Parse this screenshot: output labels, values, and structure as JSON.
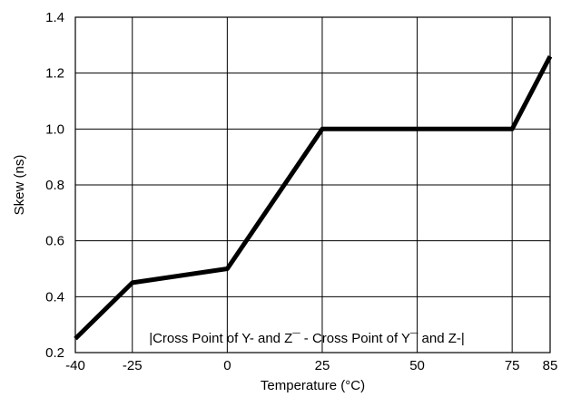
{
  "chart_data": {
    "type": "line",
    "title": "",
    "xlabel": "Temperature (°C)",
    "ylabel": "Skew (ns)",
    "x_ticks": [
      -40,
      -25,
      0,
      25,
      50,
      75,
      85
    ],
    "x_tick_labels": [
      "-40",
      "-25",
      "0",
      "25",
      "50",
      "75",
      "85"
    ],
    "y_ticks": [
      0.2,
      0.4,
      0.6,
      0.8,
      1.0,
      1.2,
      1.4
    ],
    "y_tick_labels": [
      "0.2",
      "0.4",
      "0.6",
      "0.8",
      "1.0",
      "1.2",
      "1.4"
    ],
    "xlim": [
      -40,
      85
    ],
    "ylim": [
      0.2,
      1.4
    ],
    "grid": true,
    "annotation": "|Cross Point of Y- and Z¯ - Cross Point of Y¯ and Z-|",
    "series": [
      {
        "x": [
          -40,
          -25,
          0,
          25,
          75,
          85
        ],
        "y": [
          0.25,
          0.45,
          0.5,
          1.0,
          1.0,
          1.26
        ],
        "color": "#000000"
      }
    ]
  }
}
